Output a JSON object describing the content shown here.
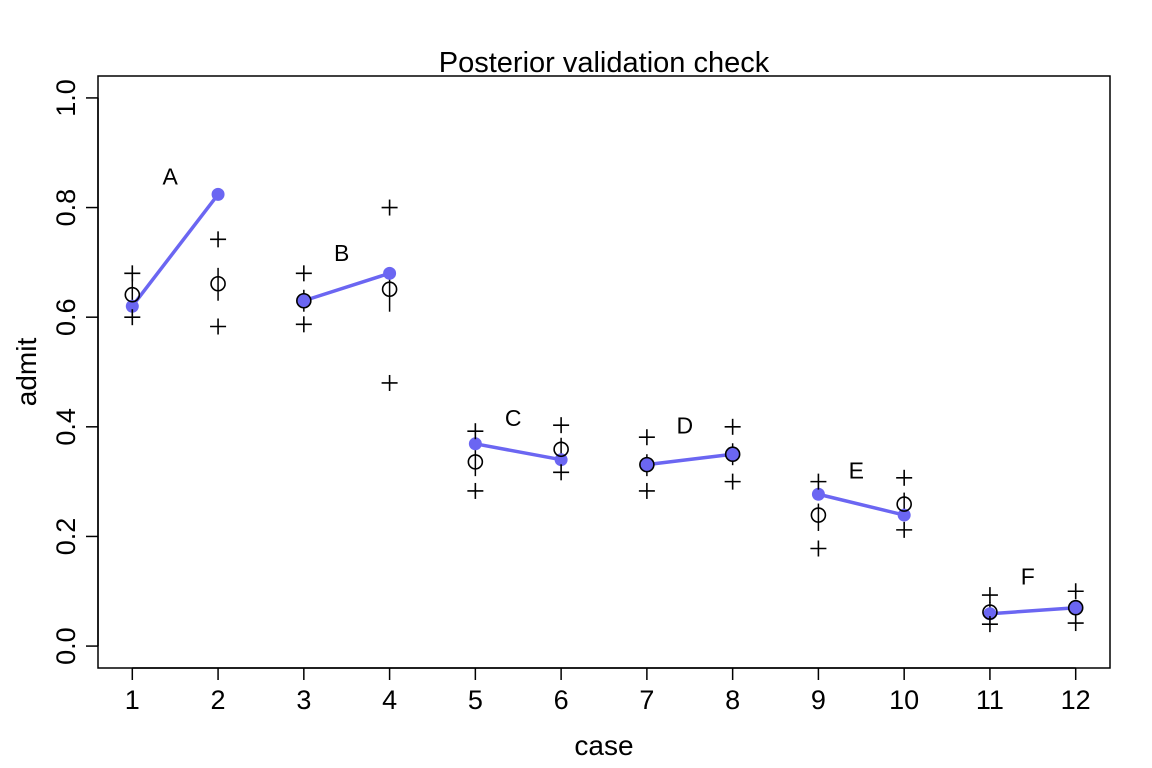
{
  "chart_data": {
    "type": "scatter",
    "title": "Posterior validation check",
    "xlabel": "case",
    "ylabel": "admit",
    "xlim": [
      0.6,
      12.4
    ],
    "ylim": [
      -0.04,
      1.04
    ],
    "x_ticks": [
      "1",
      "2",
      "3",
      "4",
      "5",
      "6",
      "7",
      "8",
      "9",
      "10",
      "11",
      "12"
    ],
    "y_ticks": [
      "0.0",
      "0.2",
      "0.4",
      "0.6",
      "0.8",
      "1.0"
    ],
    "grid": false,
    "colors": {
      "observed": "#6B66F2",
      "model": "#000000"
    },
    "observed": {
      "x": [
        1,
        2,
        3,
        4,
        5,
        6,
        7,
        8,
        9,
        10,
        11,
        12
      ],
      "y": [
        0.62,
        0.824,
        0.63,
        0.68,
        0.369,
        0.34,
        0.331,
        0.35,
        0.277,
        0.239,
        0.059,
        0.07
      ]
    },
    "groups": [
      {
        "label": "A",
        "cases": [
          1,
          2
        ]
      },
      {
        "label": "B",
        "cases": [
          3,
          4
        ]
      },
      {
        "label": "C",
        "cases": [
          5,
          6
        ]
      },
      {
        "label": "D",
        "cases": [
          7,
          8
        ]
      },
      {
        "label": "E",
        "cases": [
          9,
          10
        ]
      },
      {
        "label": "F",
        "cases": [
          11,
          12
        ]
      }
    ],
    "model_mean": {
      "x": [
        1,
        2,
        3,
        4,
        5,
        6,
        7,
        8,
        9,
        10,
        11,
        12
      ],
      "y": [
        0.641,
        0.661,
        0.63,
        0.651,
        0.336,
        0.359,
        0.331,
        0.35,
        0.239,
        0.259,
        0.062,
        0.07
      ]
    },
    "interval": {
      "x": [
        1,
        2,
        3,
        4,
        5,
        6,
        7,
        8,
        9,
        10,
        11,
        12
      ],
      "lower": [
        0.62,
        0.63,
        0.61,
        0.61,
        0.31,
        0.33,
        0.31,
        0.33,
        0.21,
        0.24,
        0.05,
        0.06
      ],
      "upper": [
        0.67,
        0.69,
        0.65,
        0.69,
        0.36,
        0.38,
        0.35,
        0.37,
        0.26,
        0.28,
        0.08,
        0.08
      ]
    },
    "prediction": {
      "x": [
        1,
        2,
        3,
        4,
        5,
        6,
        7,
        8,
        9,
        10,
        11,
        12
      ],
      "lower": [
        0.6,
        0.583,
        0.587,
        0.48,
        0.283,
        0.317,
        0.283,
        0.3,
        0.178,
        0.212,
        0.04,
        0.042
      ],
      "upper": [
        0.68,
        0.742,
        0.68,
        0.8,
        0.392,
        0.403,
        0.381,
        0.4,
        0.3,
        0.307,
        0.093,
        0.1
      ]
    }
  }
}
